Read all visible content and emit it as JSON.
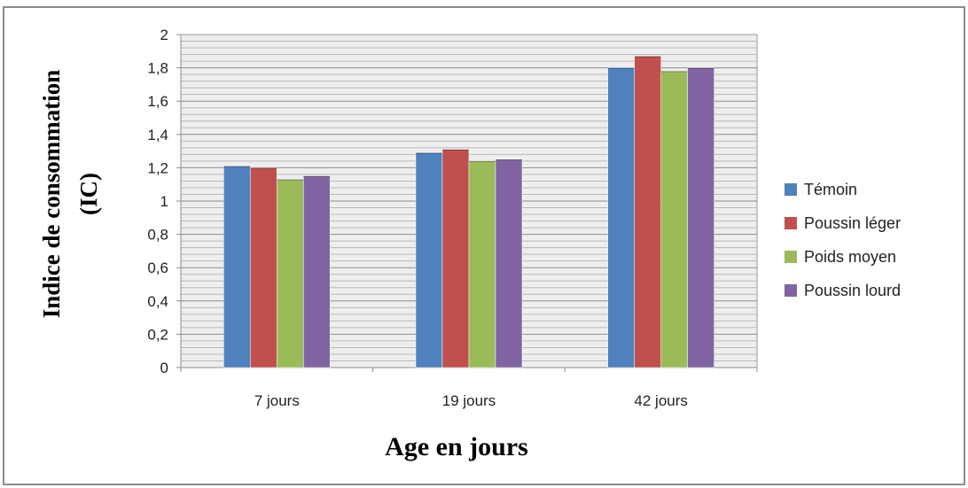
{
  "chart_data": {
    "type": "bar",
    "categories": [
      "7 jours",
      "19 jours",
      "42 jours"
    ],
    "series": [
      {
        "name": "Témoin",
        "values": [
          1.21,
          1.29,
          1.8
        ],
        "color": "#4f81bd"
      },
      {
        "name": "Poussin léger",
        "values": [
          1.2,
          1.31,
          1.87
        ],
        "color": "#c0504d"
      },
      {
        "name": "Poids moyen",
        "values": [
          1.13,
          1.24,
          1.78
        ],
        "color": "#9bbb59"
      },
      {
        "name": "Poussin lourd",
        "values": [
          1.15,
          1.25,
          1.8
        ],
        "color": "#8064a2"
      }
    ],
    "ylim": [
      0,
      2
    ],
    "yticks": [
      "0",
      "0,2",
      "0,4",
      "0,6",
      "0,8",
      "1",
      "1,2",
      "1,4",
      "1,6",
      "1,8",
      "2"
    ],
    "ylabel_line1": "Indice de consommation",
    "ylabel_line2": "(IC)",
    "xlabel": "Age en jours",
    "grid": true,
    "legend_position": "right"
  }
}
